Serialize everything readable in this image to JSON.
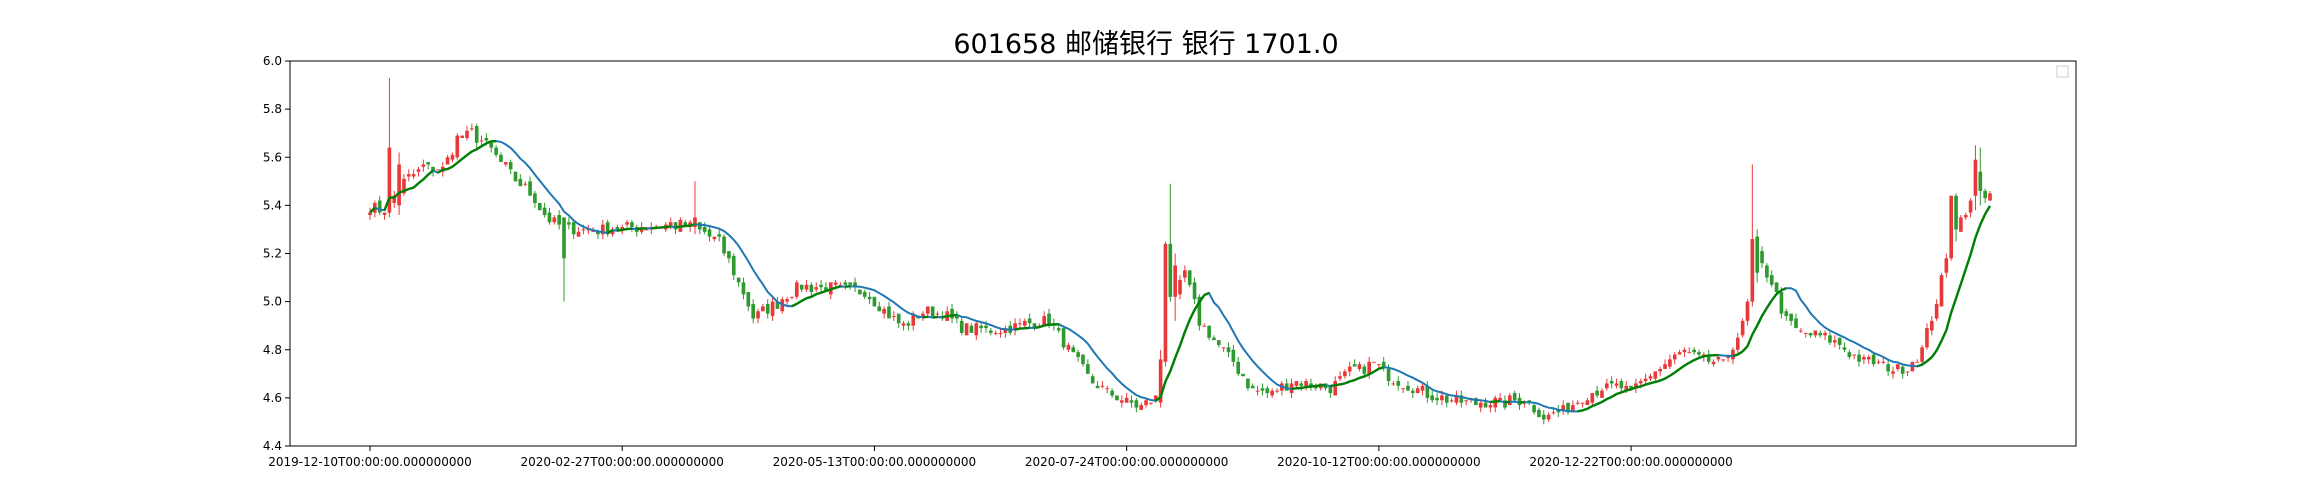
{
  "chart_data": {
    "type": "candlestick",
    "title": "601658 邮储银行 银行 1701.0",
    "xlabel": "",
    "ylabel": "",
    "ylim": [
      4.4,
      6.0
    ],
    "yticks": [
      "4.4",
      "4.6",
      "4.8",
      "5.0",
      "5.2",
      "5.4",
      "5.6",
      "5.8",
      "6.0"
    ],
    "xticks": [
      {
        "index": 0,
        "label": "2019-12-10T00:00:00.000000000"
      },
      {
        "index": 52,
        "label": "2020-02-27T00:00:00.000000000"
      },
      {
        "index": 104,
        "label": "2020-05-13T00:00:00.000000000"
      },
      {
        "index": 156,
        "label": "2020-07-24T00:00:00.000000000"
      },
      {
        "index": 208,
        "label": "2020-10-12T00:00:00.000000000"
      },
      {
        "index": 260,
        "label": "2020-12-22T00:00:00.000000000"
      }
    ],
    "grid": false,
    "legend_placement": "upper right (empty box)",
    "colors": {
      "up": "#e8393a",
      "down": "#2e9a2e",
      "ma_blue": "#1f77b4",
      "ma_green": "#008000"
    },
    "ohlc": [],
    "ma": [],
    "ma_trend_up": []
  }
}
